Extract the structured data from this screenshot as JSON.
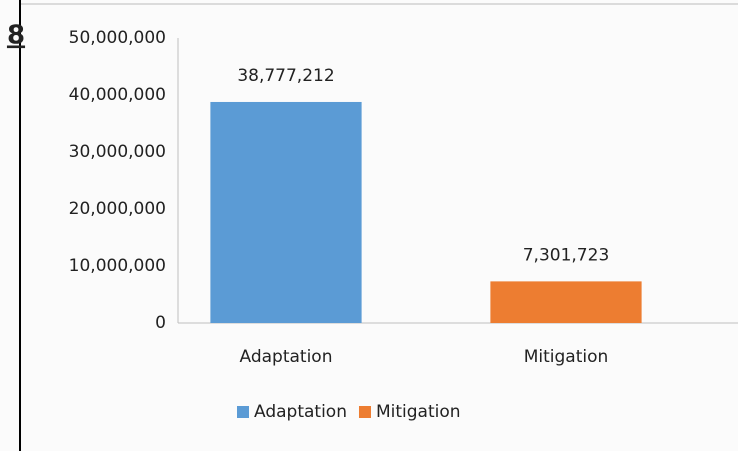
{
  "chart_data": {
    "type": "bar",
    "annotation": "8",
    "categories": [
      "Adaptation",
      "Mitigation"
    ],
    "values": [
      38777212,
      7301723
    ],
    "value_labels": [
      "38,777,212",
      "7,301,723"
    ],
    "colors": [
      "#5b9bd5",
      "#ed7d31"
    ],
    "ylim": [
      0,
      50000000
    ],
    "yticks": [
      0,
      {
        "value": 10000000,
        "label": "10,000,000"
      },
      {
        "value": 20000000,
        "label": "20,000,000"
      },
      {
        "value": 30000000,
        "label": "30,000,000"
      },
      {
        "value": 40000000,
        "label": "40,000,000"
      },
      {
        "value": 50000000,
        "label": "50,000,000"
      }
    ],
    "grid": false,
    "legend": "bottom"
  }
}
